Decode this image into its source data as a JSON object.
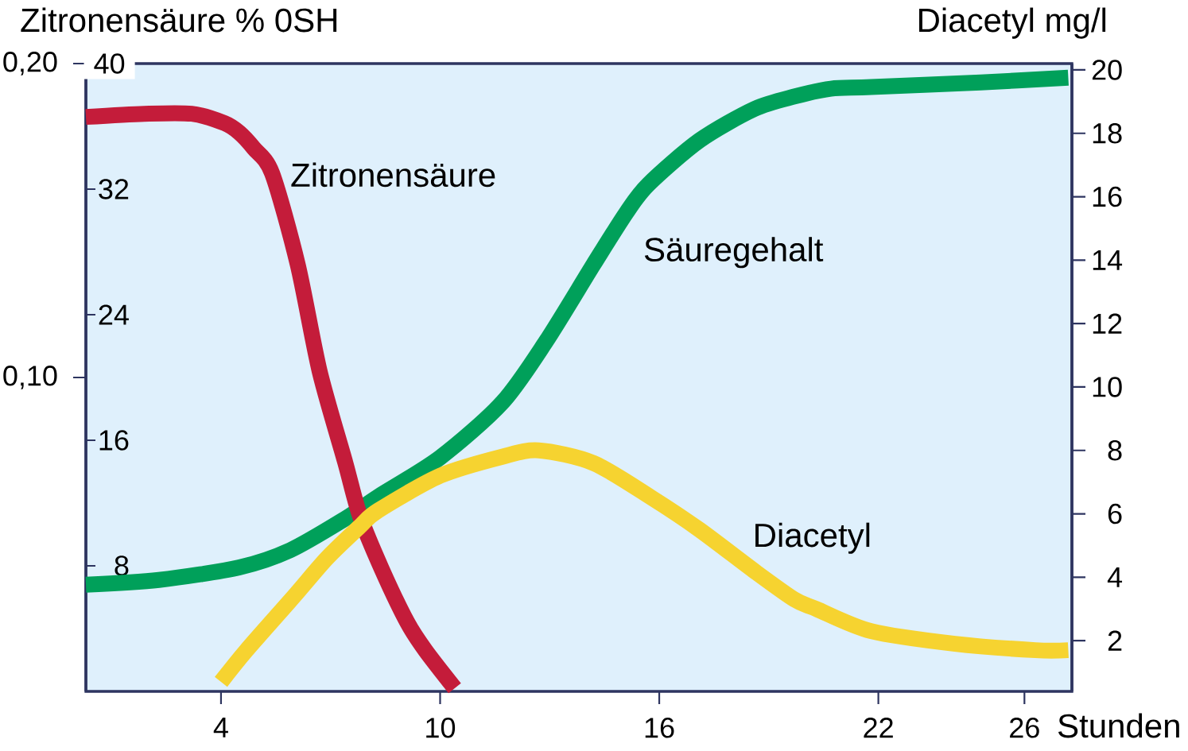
{
  "chart_data": {
    "type": "line",
    "ylabel": "Zitronensäure % 0SH",
    "y2label": "Diacetyl mg/l",
    "xlabel": "Stunden",
    "xlim": [
      0.3,
      27.3
    ],
    "xticks": [
      4,
      10,
      16,
      22,
      26
    ],
    "ylim": [
      0,
      0.2
    ],
    "yticks": [
      {
        "value": 0.1,
        "label": "0,10"
      },
      {
        "value": 0.2,
        "label": "0,20"
      }
    ],
    "y3lim": [
      0,
      40
    ],
    "y3ticks": [
      8,
      16,
      24,
      32,
      40
    ],
    "y2lim": [
      0.4,
      20.2
    ],
    "y2ticks": [
      2,
      4,
      6,
      8,
      10,
      12,
      14,
      16,
      18,
      20
    ],
    "marker": "none",
    "line_style": "solid",
    "series": [
      {
        "name": "Zitronensäure",
        "color": "#c41c3a",
        "x": [
          0.3,
          1.9,
          3.2,
          4.1,
          4.5,
          4.9,
          5.4,
          6.1,
          6.7,
          7.4,
          7.8,
          8.4,
          9.1,
          9.6,
          10.4
        ],
        "values": [
          0.183,
          0.184,
          0.184,
          0.181,
          0.178,
          0.173,
          0.165,
          0.136,
          0.102,
          0.073,
          0.056,
          0.039,
          0.022,
          0.013,
          0.001
        ]
      },
      {
        "name": "Säuregehalt",
        "color": "#00a05a",
        "axis": "y3",
        "x": [
          0.3,
          2.3,
          4.5,
          5.9,
          7.4,
          8.3,
          10.0,
          11.7,
          12.9,
          14.2,
          15.1,
          15.7,
          17.1,
          18.6,
          19.7,
          20.7,
          21.8,
          24.8,
          27.2
        ],
        "values": [
          6.8,
          7.1,
          7.9,
          9.0,
          11.0,
          12.4,
          14.9,
          18.4,
          22.3,
          27.2,
          30.5,
          32.3,
          35.1,
          37.1,
          37.9,
          38.4,
          38.5,
          38.8,
          39.1
        ]
      },
      {
        "name": "Diacetyl",
        "color": "#f6d330",
        "axis": "y2",
        "x": [
          4.0,
          4.7,
          6.0,
          6.9,
          7.8,
          8.3,
          10.0,
          11.7,
          12.7,
          14.2,
          15.8,
          17.1,
          18.6,
          19.7,
          20.3,
          21.8,
          24.1,
          26.3,
          27.2
        ],
        "values": [
          0.7,
          1.7,
          3.4,
          4.6,
          5.6,
          6.1,
          7.2,
          7.8,
          8.0,
          7.6,
          6.5,
          5.5,
          4.2,
          3.3,
          3.0,
          2.3,
          1.9,
          1.7,
          1.7
        ]
      }
    ]
  }
}
